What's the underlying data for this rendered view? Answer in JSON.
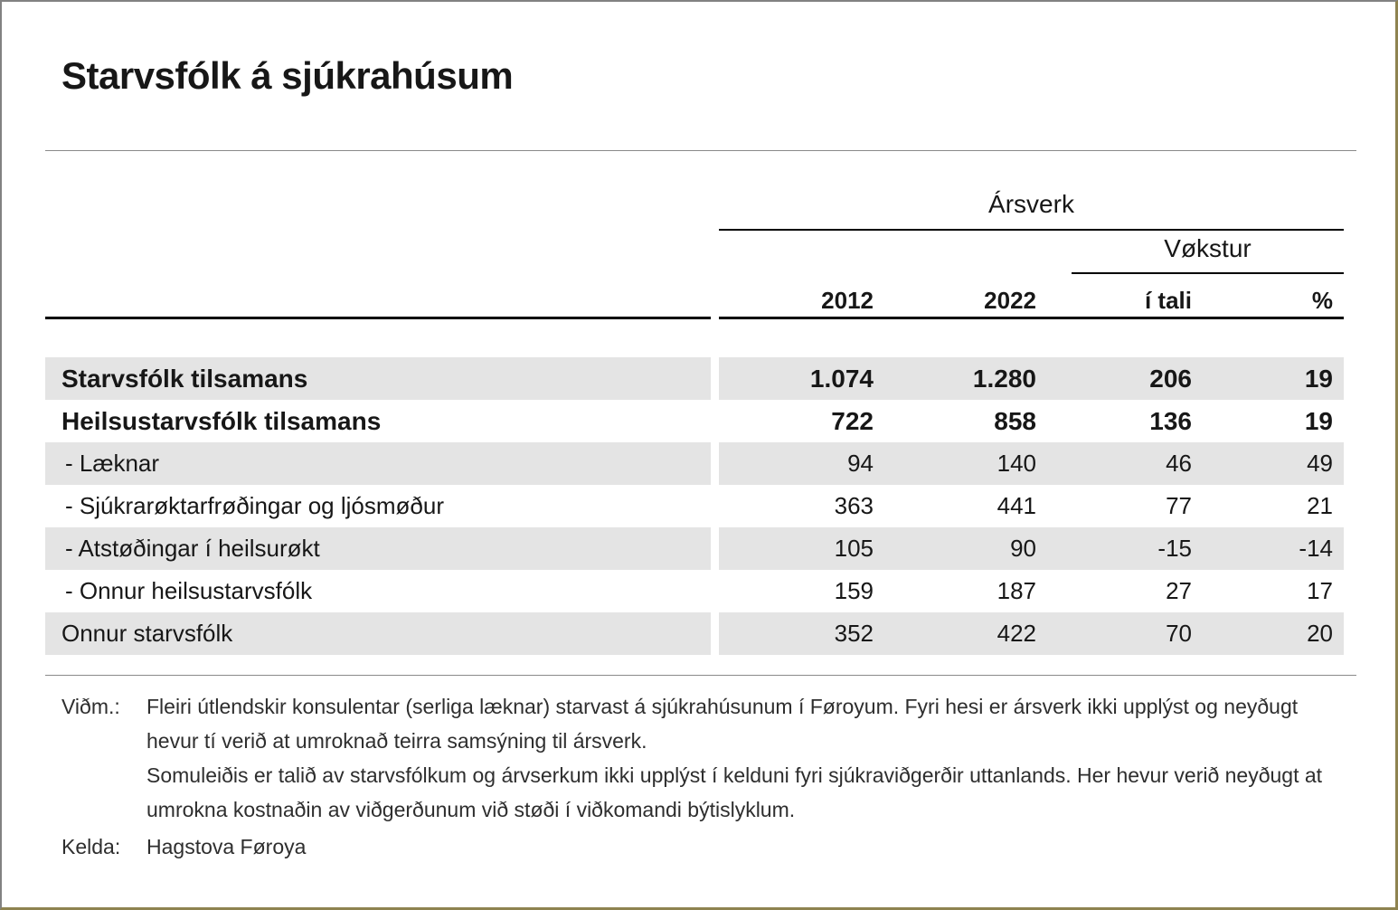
{
  "title": "Starvsfólk á sjúkrahúsum",
  "table": {
    "group_headers": {
      "arsverk": "Ársverk",
      "vokstur": "Vøkstur"
    },
    "columns": [
      "2012",
      "2022",
      "í tali",
      "%"
    ],
    "rows": [
      {
        "label": "Starvsfólk tilsamans",
        "values": [
          "1.074",
          "1.280",
          "206",
          "19"
        ]
      },
      {
        "label": "Heilsustarvsfólk tilsamans",
        "values": [
          "722",
          "858",
          "136",
          "19"
        ]
      },
      {
        "label": "- Læknar",
        "values": [
          "94",
          "140",
          "46",
          "49"
        ]
      },
      {
        "label": "- Sjúkrarøktarfrøðingar og ljósmøður",
        "values": [
          "363",
          "441",
          "77",
          "21"
        ]
      },
      {
        "label": "- Atstøðingar í heilsurøkt",
        "values": [
          "105",
          "90",
          "-15",
          "-14"
        ]
      },
      {
        "label": "- Onnur heilsustarvsfólk",
        "values": [
          "159",
          "187",
          "27",
          "17"
        ]
      },
      {
        "label": "Onnur starvsfólk",
        "values": [
          "352",
          "422",
          "70",
          "20"
        ]
      }
    ]
  },
  "notes": {
    "label": "Viðm.:",
    "paragraphs": [
      "Fleiri útlendskir konsulentar (serliga læknar) starvast á sjúkrahúsunum í Føroyum. Fyri hesi er ársverk ikki upplýst og neyðugt hevur tí verið at umroknað teirra samsýning til ársverk.",
      "Somuleiðis er talið av starvsfólkum og árvserkum ikki upplýst í kelduni fyri sjúkraviðgerðir uttanlands. Her hevur verið neyðugt at umrokna kostnaðin av viðgerðunum við støði í viðkomandi býtislyklum."
    ],
    "source_label": "Kelda:",
    "source": "Hagstova Føroya"
  },
  "colors": {
    "row_shade": "#e4e4e4",
    "rule_gray": "#8a8a8a",
    "table_line": "#000000",
    "border_gray": "#828282",
    "border_olive": "#8e8350"
  }
}
